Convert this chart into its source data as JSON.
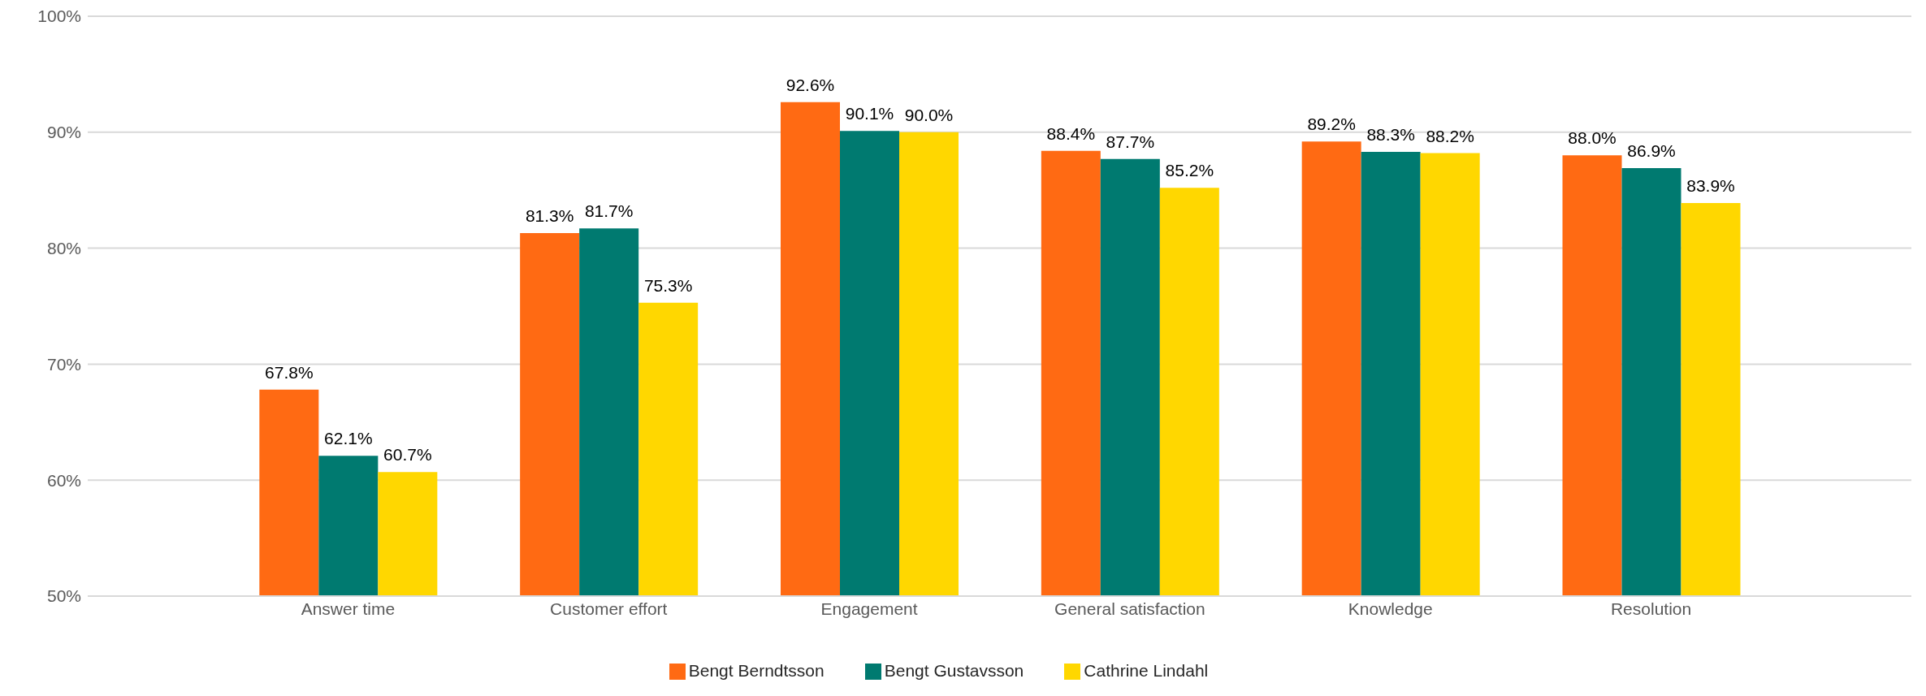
{
  "chart_data": {
    "type": "bar",
    "categories": [
      "Answer time",
      "Customer effort",
      "Engagement",
      "General satisfaction",
      "Knowledge",
      "Resolution"
    ],
    "series": [
      {
        "name": "Bengt Berndtsson",
        "color": "#ff6a13",
        "values": [
          67.8,
          81.3,
          92.6,
          88.4,
          89.2,
          88.0
        ],
        "value_labels": [
          "67.8%",
          "81.3%",
          "92.6%",
          "88.4%",
          "89.2%",
          "88.0%"
        ]
      },
      {
        "name": "Bengt Gustavsson",
        "color": "#007a70",
        "values": [
          62.1,
          81.7,
          90.1,
          87.7,
          88.3,
          86.9
        ],
        "value_labels": [
          "62.1%",
          "81.7%",
          "90.1%",
          "87.7%",
          "88.3%",
          "86.9%"
        ]
      },
      {
        "name": "Cathrine Lindahl",
        "color": "#ffd700",
        "values": [
          60.7,
          75.3,
          90.0,
          85.2,
          88.2,
          83.9
        ],
        "value_labels": [
          "60.7%",
          "75.3%",
          "90.0%",
          "85.2%",
          "88.2%",
          "83.9%"
        ]
      }
    ],
    "ylim": [
      50,
      100
    ],
    "yticks": [
      {
        "value": 50,
        "label": "50%"
      },
      {
        "value": 60,
        "label": "60%"
      },
      {
        "value": 70,
        "label": "70%"
      },
      {
        "value": 80,
        "label": "80%"
      },
      {
        "value": 90,
        "label": "90%"
      },
      {
        "value": 100,
        "label": "100%"
      }
    ],
    "grid": "y",
    "legend": "bottom"
  }
}
